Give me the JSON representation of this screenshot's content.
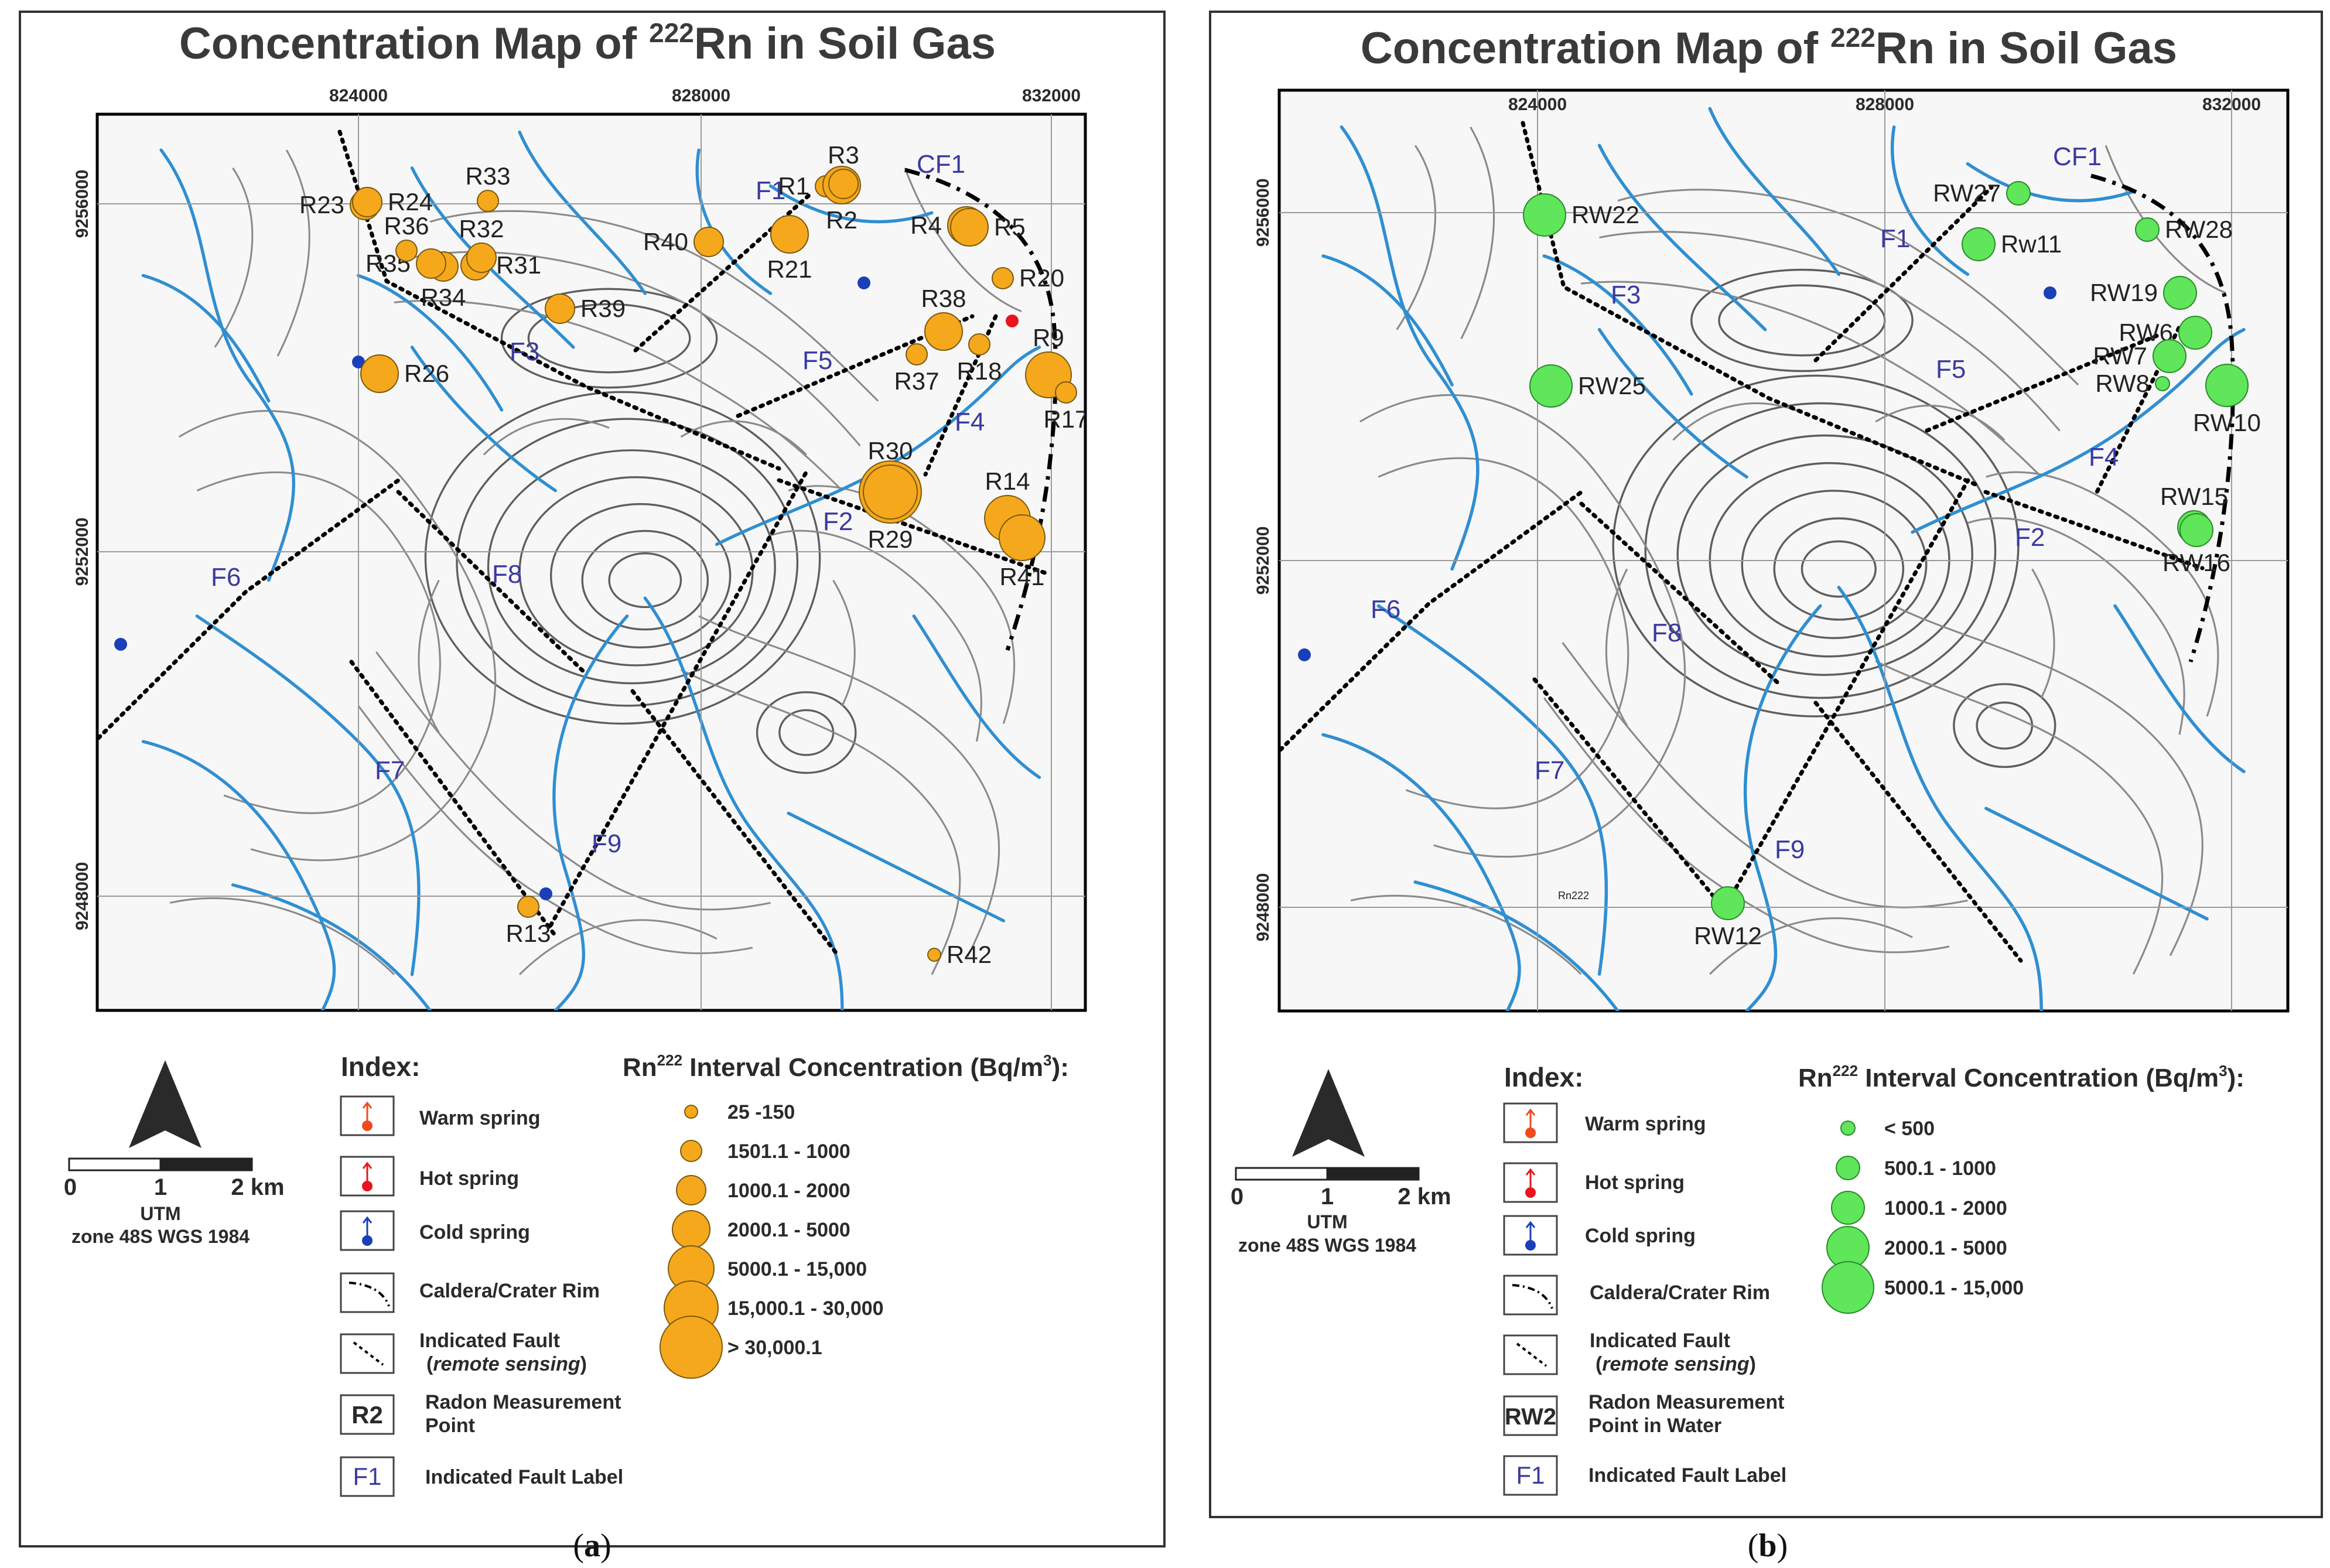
{
  "panels": [
    {
      "id": "a",
      "title_pre": "Concentration Map of ",
      "title_sup": "222",
      "title_post": "Rn in Soil Gas",
      "x_ticks": [
        "824000",
        "828000",
        "832000"
      ],
      "y_ticks": [
        "9256000",
        "9252000",
        "9248000"
      ],
      "fault_labels": [
        "F1",
        "F2",
        "F3",
        "F4",
        "F5",
        "F6",
        "F7",
        "F8",
        "F9",
        "CF1"
      ],
      "points": [
        {
          "label": "R1",
          "class": "1501.1 - 1000"
        },
        {
          "label": "R2",
          "class": "2000.1 - 5000"
        },
        {
          "label": "R3",
          "class": "1000.1 - 2000"
        },
        {
          "label": "R4",
          "class": "2000.1 - 5000"
        },
        {
          "label": "R5",
          "class": "2000.1 - 5000"
        },
        {
          "label": "R9",
          "class": "5000.1 - 15,000"
        },
        {
          "label": "R13",
          "class": "1501.1 - 1000"
        },
        {
          "label": "R14",
          "class": "5000.1 - 15,000"
        },
        {
          "label": "R17",
          "class": "1501.1 - 1000"
        },
        {
          "label": "R18",
          "class": "1501.1 - 1000"
        },
        {
          "label": "R20",
          "class": "1501.1 - 1000"
        },
        {
          "label": "R21",
          "class": "2000.1 - 5000"
        },
        {
          "label": "R23",
          "class": "1000.1 - 2000"
        },
        {
          "label": "R24",
          "class": "1000.1 - 2000"
        },
        {
          "label": "R26",
          "class": "2000.1 - 5000"
        },
        {
          "label": "R29",
          "class": "> 30,000.1"
        },
        {
          "label": "R30",
          "class": "15,000.1 - 30,000"
        },
        {
          "label": "R31",
          "class": "1000.1 - 2000"
        },
        {
          "label": "R32",
          "class": "1000.1 - 2000"
        },
        {
          "label": "R33",
          "class": "1501.1 - 1000"
        },
        {
          "label": "R34",
          "class": "1000.1 - 2000"
        },
        {
          "label": "R35",
          "class": "1000.1 - 2000"
        },
        {
          "label": "R36",
          "class": "1501.1 - 1000"
        },
        {
          "label": "R37",
          "class": "1501.1 - 1000"
        },
        {
          "label": "R38",
          "class": "2000.1 - 5000"
        },
        {
          "label": "R39",
          "class": "1000.1 - 2000"
        },
        {
          "label": "R40",
          "class": "1000.1 - 2000"
        },
        {
          "label": "R41",
          "class": "5000.1 - 15,000"
        },
        {
          "label": "R42",
          "class": "25 -150"
        }
      ],
      "legend_title_pre": "Rn",
      "legend_title_sup": "222",
      "legend_title_post": " Interval Concentration (Bq/m",
      "legend_title_sup2": "3",
      "legend_title_end": "):",
      "legend_classes": [
        "25 -150",
        "1501.1 - 1000",
        "1000.1 - 2000",
        "2000.1 - 5000",
        "5000.1 - 15,000",
        "15,000.1 - 30,000",
        "> 30,000.1"
      ],
      "point_example": "R2",
      "point_text_1": "Radon Measurement",
      "point_text_2": "Point",
      "caption": "a",
      "symbol_color": "#f6a81c"
    },
    {
      "id": "b",
      "title_pre": "Concentration Map of ",
      "title_sup": "222",
      "title_post": "Rn in Soil Gas",
      "x_ticks": [
        "824000",
        "828000",
        "832000"
      ],
      "y_ticks": [
        "9256000",
        "9252000",
        "9248000"
      ],
      "fault_labels": [
        "F1",
        "F2",
        "F3",
        "F4",
        "F5",
        "F6",
        "F7",
        "F8",
        "F9",
        "CF1"
      ],
      "points": [
        {
          "label": "RW22",
          "class": "2000.1 - 5000"
        },
        {
          "label": "RW25",
          "class": "2000.1 - 5000"
        },
        {
          "label": "RW27",
          "class": "500.1 - 1000"
        },
        {
          "label": "Rw11",
          "class": "1000.1 - 2000"
        },
        {
          "label": "RW28",
          "class": "500.1 - 1000"
        },
        {
          "label": "RW19",
          "class": "1000.1 - 2000"
        },
        {
          "label": "RW6",
          "class": "1000.1 - 2000"
        },
        {
          "label": "RW7",
          "class": "1000.1 - 2000"
        },
        {
          "label": "RW8",
          "class": "< 500"
        },
        {
          "label": "RW10",
          "class": "2000.1 - 5000"
        },
        {
          "label": "RW15",
          "class": "1000.1 - 2000"
        },
        {
          "label": "RW16",
          "class": "1000.1 - 2000"
        },
        {
          "label": "RW12",
          "class": "1000.1 - 2000"
        }
      ],
      "legend_title_pre": "Rn",
      "legend_title_sup": "222",
      "legend_title_post": " Interval Concentration (Bq/m",
      "legend_title_sup2": "3",
      "legend_title_end": "):",
      "legend_classes": [
        "< 500",
        "500.1 - 1000",
        "1000.1 - 2000",
        "2000.1 - 5000",
        "5000.1 - 15,000"
      ],
      "point_example": "RW2",
      "point_text_1": "Radon Measurement",
      "point_text_2": "Point in Water",
      "caption": "b",
      "symbol_color": "#5fe65a",
      "tiny_mark": "Rn222"
    }
  ],
  "shared_legend": {
    "index_title": "Index:",
    "warm_spring": "Warm spring",
    "hot_spring": "Hot spring",
    "cold_spring": "Cold spring",
    "rim": "Caldera/Crater Rim",
    "fault_1": "Indicated Fault",
    "fault_2_pre": "(",
    "fault_2_it": "remote sensing",
    "fault_2_post": ")",
    "fault_label_example": "F1",
    "fault_label_text": "Indicated Fault Label",
    "scale_labels": [
      "0",
      "1",
      "2 km"
    ],
    "projection_1": "UTM",
    "projection_2": "zone 48S WGS 1984"
  },
  "colors": {
    "river": "#2f8fd1",
    "fault_label": "#3a3aa0",
    "warm_spring": "#f04a1e",
    "hot_spring": "#e8141e",
    "cold_spring": "#1a3fb8",
    "soil_gas_symbol": "#f6a81c",
    "water_symbol": "#5fe65a"
  }
}
